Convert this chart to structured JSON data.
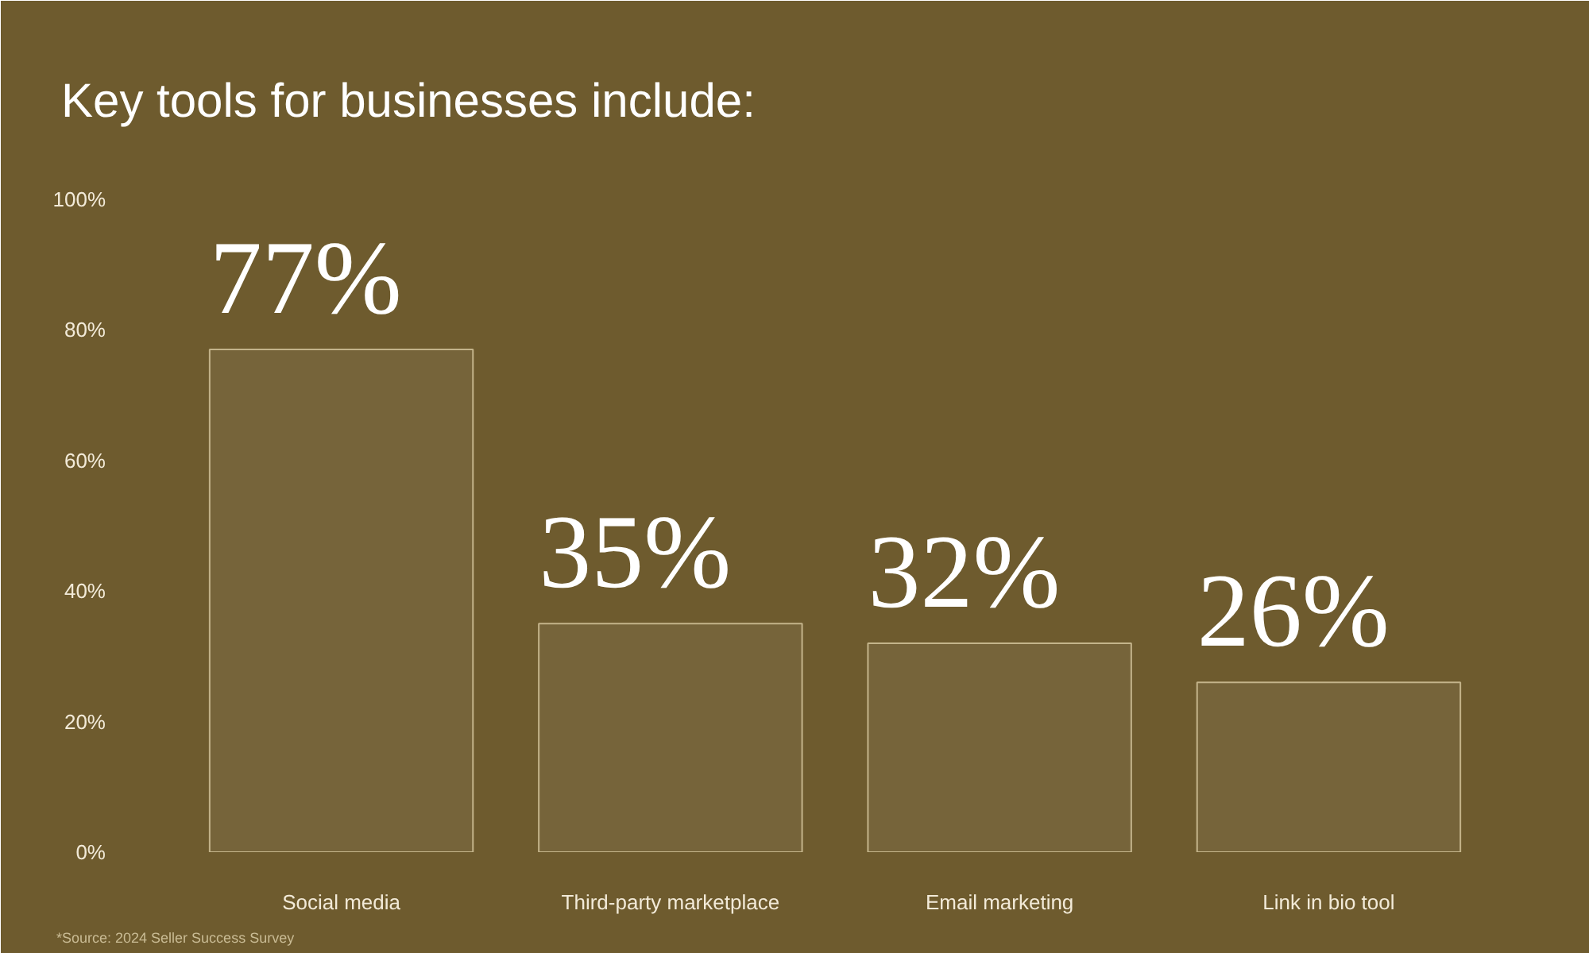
{
  "chart_data": {
    "type": "bar",
    "title": "Key tools for businesses include:",
    "categories": [
      "Social media",
      "Third-party marketplace",
      "Email marketing",
      "Link in bio tool"
    ],
    "values": [
      77,
      35,
      32,
      26
    ],
    "value_labels": [
      "77%",
      "35%",
      "32%",
      "26%"
    ],
    "color": "#d8c9a0",
    "ylim": [
      0,
      100
    ],
    "yticks": [
      {
        "value": 0,
        "label": "0%"
      },
      {
        "value": 20,
        "label": "20%"
      },
      {
        "value": 40,
        "label": "40%"
      },
      {
        "value": 60,
        "label": "60%"
      },
      {
        "value": 80,
        "label": "80%"
      },
      {
        "value": 100,
        "label": "100%"
      }
    ],
    "annotations": [
      "*Source: 2024 Seller Success Survey"
    ]
  }
}
